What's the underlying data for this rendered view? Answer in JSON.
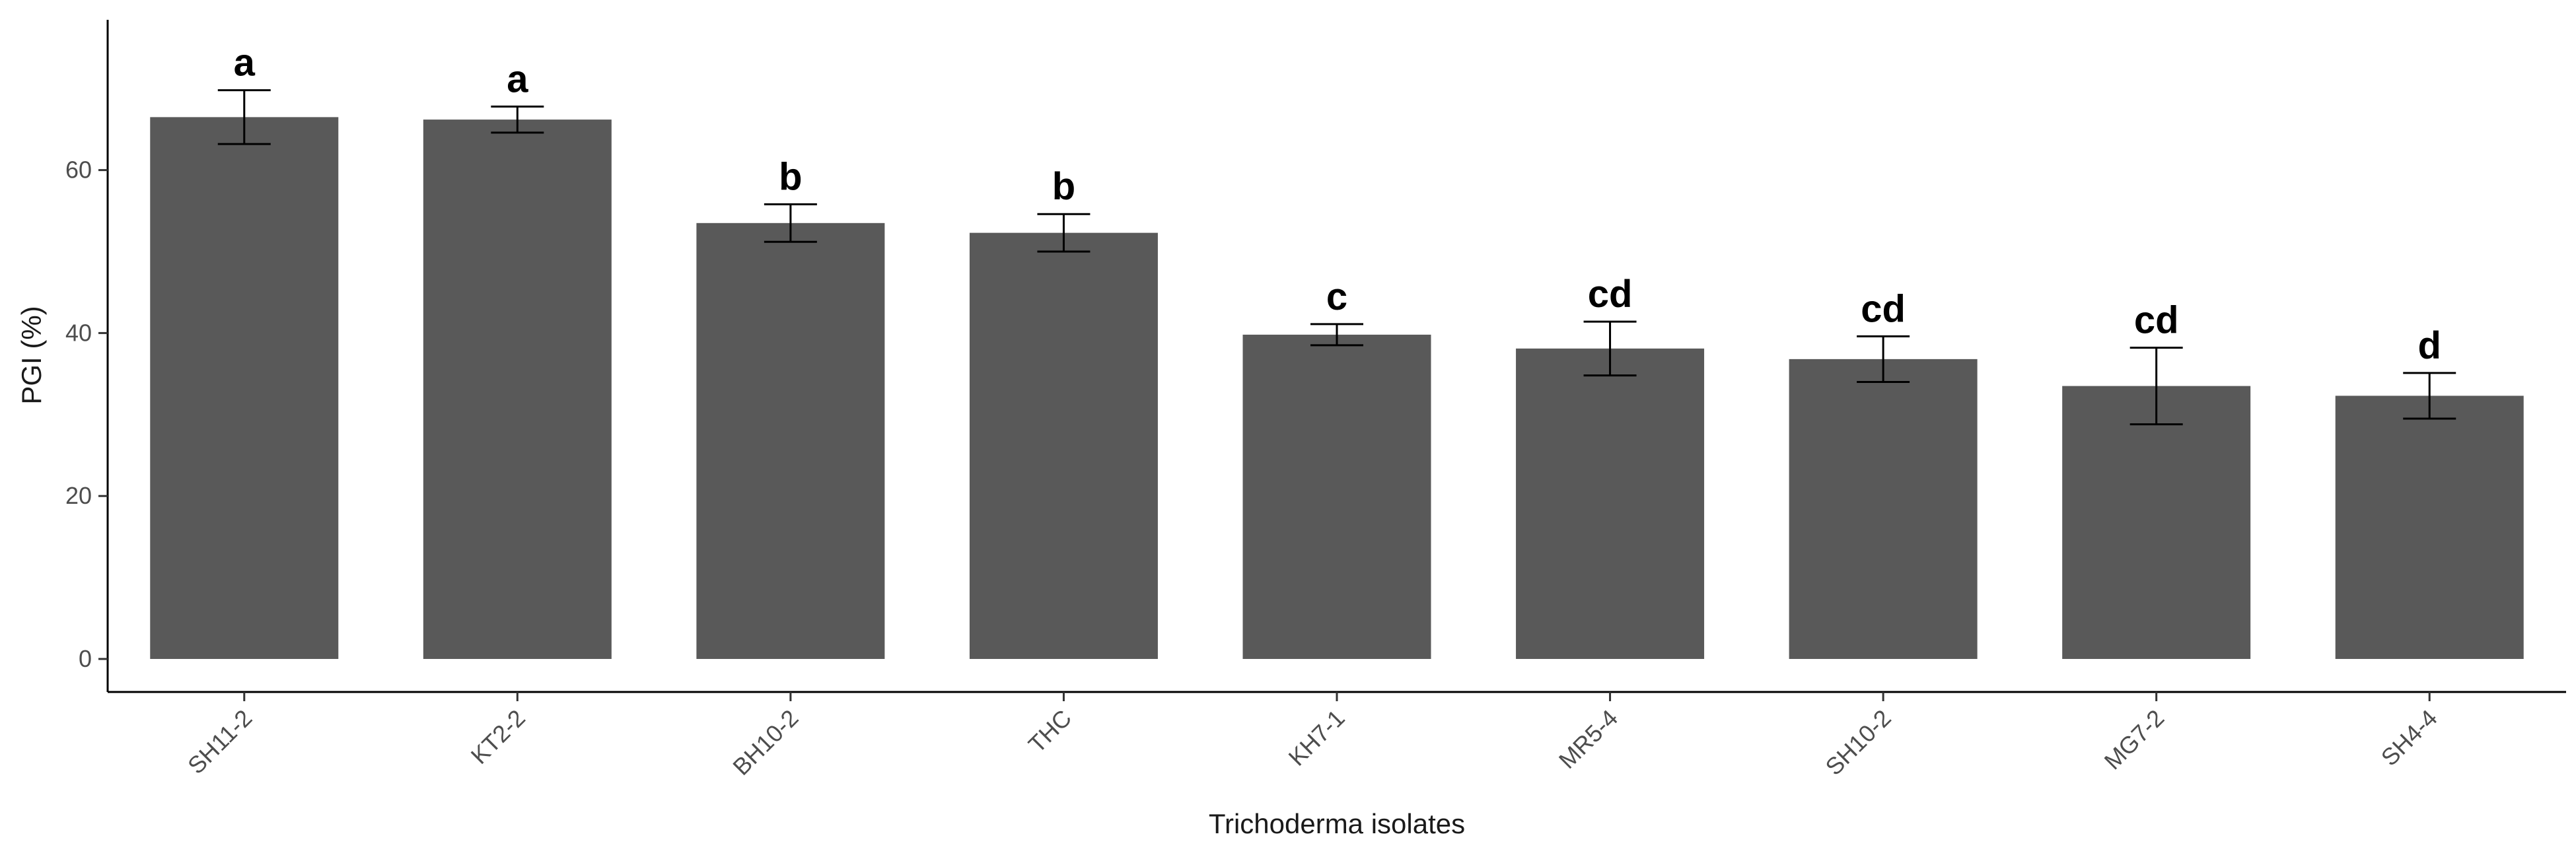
{
  "chart_data": {
    "type": "bar",
    "title": "",
    "xlabel": "Trichoderma isolates",
    "ylabel": "PGI (%)",
    "ylim": [
      -4,
      79
    ],
    "yticks": [
      0,
      20,
      40,
      60
    ],
    "grid": false,
    "legend": "none",
    "bar_color": "#595959",
    "categories": [
      "SH11-2",
      "KT2-2",
      "BH10-2",
      "THC",
      "KH7-1",
      "MR5-4",
      "SH10-2",
      "MG7-2",
      "SH4-4"
    ],
    "values": [
      66.5,
      66.2,
      53.5,
      52.3,
      39.8,
      38.1,
      36.8,
      33.5,
      32.3
    ],
    "error": [
      3.3,
      1.6,
      2.3,
      2.3,
      1.3,
      3.3,
      2.8,
      4.7,
      2.8
    ],
    "significance_labels": [
      "a",
      "a",
      "b",
      "b",
      "c",
      "cd",
      "cd",
      "cd",
      "d"
    ]
  }
}
